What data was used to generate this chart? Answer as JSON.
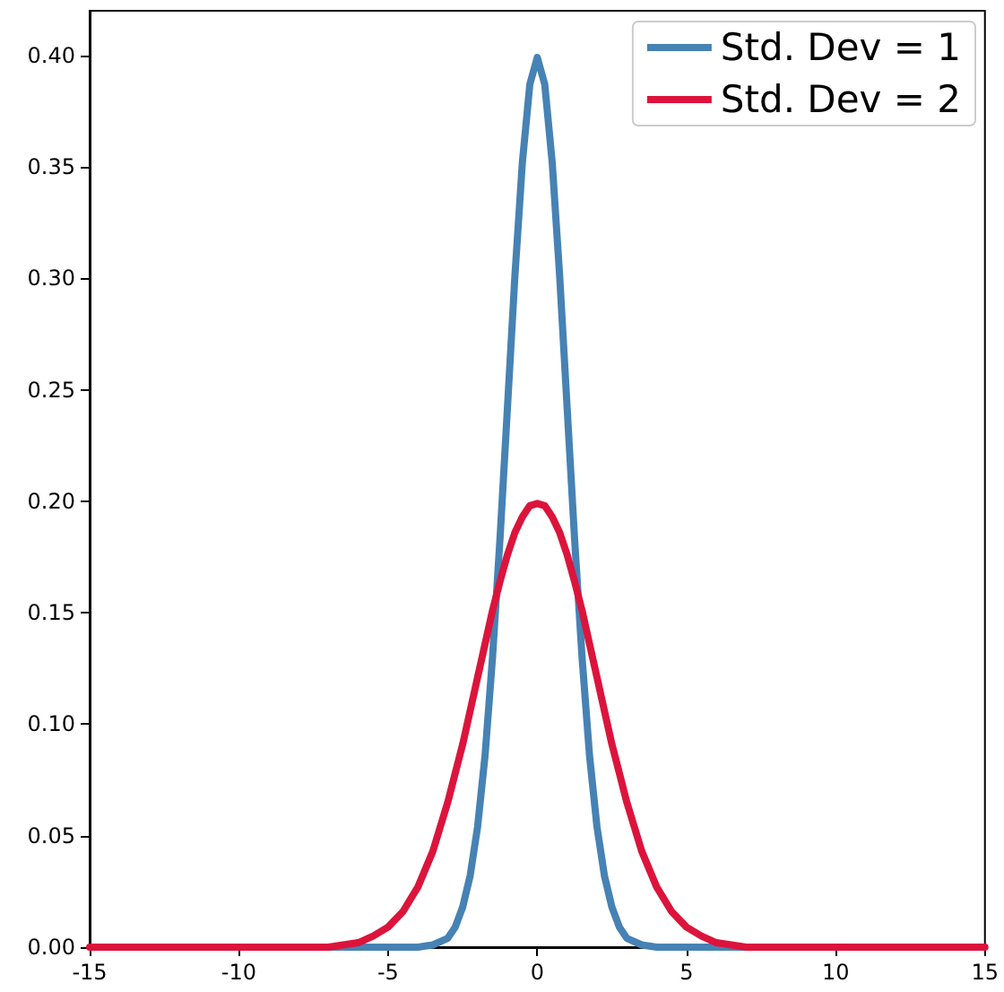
{
  "chart_data": {
    "type": "line",
    "x": [
      -15,
      -10,
      -8,
      -7,
      -6,
      -5.5,
      -5,
      -4.5,
      -4,
      -3.5,
      -3,
      -2.75,
      -2.5,
      -2.25,
      -2,
      -1.75,
      -1.5,
      -1.25,
      -1,
      -0.75,
      -0.5,
      -0.25,
      0,
      0.25,
      0.5,
      0.75,
      1,
      1.25,
      1.5,
      1.75,
      2,
      2.25,
      2.5,
      2.75,
      3,
      3.5,
      4,
      4.5,
      5,
      5.5,
      6,
      7,
      8,
      10,
      15
    ],
    "series": [
      {
        "name": "Std. Dev = 1",
        "color": "#4682b4",
        "values": [
          null,
          null,
          null,
          0,
          0,
          0,
          0,
          0,
          0,
          0.001,
          0.004,
          0.009,
          0.018,
          0.032,
          0.054,
          0.086,
          0.13,
          0.183,
          0.242,
          0.301,
          0.352,
          0.387,
          0.399,
          0.387,
          0.352,
          0.301,
          0.242,
          0.183,
          0.13,
          0.086,
          0.054,
          0.032,
          0.018,
          0.009,
          0.004,
          0.001,
          0,
          0,
          0,
          0,
          0,
          0,
          null,
          null,
          null
        ]
      },
      {
        "name": "Std. Dev = 2",
        "color": "#dc143c",
        "values": [
          0,
          0,
          0,
          0,
          0.002,
          0.005,
          0.009,
          0.016,
          0.027,
          0.043,
          0.065,
          0.078,
          0.091,
          0.106,
          0.121,
          0.136,
          0.151,
          0.164,
          0.176,
          0.186,
          0.193,
          0.198,
          0.199,
          0.198,
          0.193,
          0.186,
          0.176,
          0.164,
          0.151,
          0.136,
          0.121,
          0.106,
          0.091,
          0.078,
          0.065,
          0.043,
          0.027,
          0.016,
          0.009,
          0.005,
          0.002,
          0,
          0,
          0,
          0
        ]
      }
    ],
    "xlim": [
      -15,
      15
    ],
    "xticks": [
      -15,
      -10,
      -5,
      0,
      5,
      10,
      15
    ],
    "ylim": [
      0,
      0.42
    ],
    "yticks": [
      {
        "value": 0,
        "label": "0.00"
      },
      {
        "value": 0.05,
        "label": "0.05"
      },
      {
        "value": 0.1,
        "label": "0.10"
      },
      {
        "value": 0.15,
        "label": "0.15"
      },
      {
        "value": 0.2,
        "label": "0.20"
      },
      {
        "value": 0.25,
        "label": "0.25"
      },
      {
        "value": 0.3,
        "label": "0.30"
      },
      {
        "value": 0.35,
        "label": "0.35"
      },
      {
        "value": 0.4,
        "label": "0.40"
      }
    ],
    "grid": false,
    "legend": "top right",
    "marker": "none",
    "line_style": "solid"
  }
}
